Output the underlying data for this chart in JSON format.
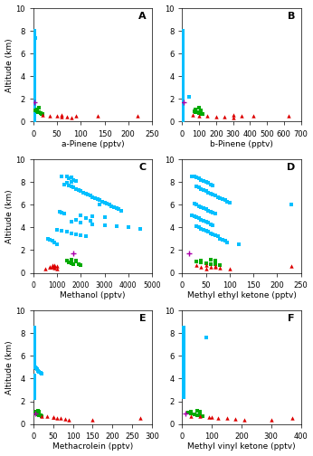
{
  "panels": [
    {
      "label": "A",
      "xlabel": "a-Pinene (pptv)",
      "xlim": [
        0,
        250
      ],
      "xticks": [
        0,
        50,
        100,
        150,
        200,
        250
      ],
      "cyan_x": [
        2,
        3,
        2,
        4,
        3,
        2,
        2,
        2,
        2,
        2,
        3,
        2,
        2,
        2,
        2,
        2,
        2,
        2,
        2,
        2,
        2,
        2,
        2,
        2,
        2,
        2,
        2,
        2,
        2,
        2,
        2,
        2,
        2,
        2,
        2,
        2,
        2,
        2,
        2,
        2,
        2,
        2,
        2,
        2,
        2,
        2,
        2,
        2,
        2,
        2,
        2,
        2,
        2,
        2,
        2,
        2,
        2,
        2,
        2,
        2
      ],
      "cyan_y": [
        8.0,
        7.8,
        7.6,
        7.4,
        7.2,
        7.0,
        6.8,
        6.6,
        6.4,
        6.2,
        6.0,
        5.8,
        5.6,
        5.4,
        5.2,
        5.0,
        4.8,
        4.6,
        4.4,
        4.2,
        4.0,
        3.8,
        3.6,
        3.4,
        3.2,
        3.0,
        2.8,
        2.6,
        2.4,
        2.2,
        2.0,
        1.8,
        1.6,
        1.4,
        1.2,
        1.1,
        1.0,
        0.9,
        0.8,
        0.7,
        0.6,
        0.5,
        0.4,
        0.3,
        0.2,
        0.1,
        2.1,
        1.9,
        1.7,
        1.5,
        1.3,
        2.3,
        2.5,
        2.7,
        2.9,
        3.1,
        3.3,
        3.5,
        3.7,
        4.1
      ],
      "green_x": [
        5,
        8,
        10,
        12,
        15,
        18,
        20,
        8,
        12
      ],
      "green_y": [
        1.0,
        0.9,
        0.85,
        0.8,
        0.75,
        0.7,
        0.65,
        1.1,
        1.2
      ],
      "red_x": [
        20,
        35,
        50,
        60,
        70,
        80,
        90,
        60,
        135,
        220
      ],
      "red_y": [
        0.6,
        0.55,
        0.5,
        0.45,
        0.4,
        0.35,
        0.5,
        0.6,
        0.55,
        0.5
      ],
      "purple_x": [
        1.8
      ],
      "purple_y": [
        1.75
      ]
    },
    {
      "label": "B",
      "xlabel": "b-Pinene (pptv)",
      "xlim": [
        0,
        700
      ],
      "xticks": [
        0,
        100,
        200,
        300,
        400,
        500,
        600,
        700
      ],
      "cyan_x": [
        5,
        5,
        5,
        5,
        5,
        5,
        5,
        5,
        5,
        5,
        5,
        5,
        5,
        5,
        5,
        5,
        5,
        5,
        5,
        5,
        5,
        5,
        5,
        5,
        5,
        5,
        5,
        5,
        5,
        5,
        5,
        5,
        5,
        5,
        5,
        5,
        5,
        5,
        5,
        5,
        5,
        5,
        5,
        5,
        5,
        5,
        5,
        5,
        5,
        5,
        5,
        5,
        5,
        5,
        5,
        5,
        5,
        5,
        5,
        5,
        40
      ],
      "cyan_y": [
        8.0,
        7.8,
        7.6,
        7.4,
        7.2,
        7.0,
        6.8,
        6.6,
        6.4,
        6.2,
        6.0,
        5.8,
        5.6,
        5.4,
        5.2,
        5.0,
        4.8,
        4.6,
        4.4,
        4.2,
        4.0,
        3.8,
        3.6,
        3.4,
        3.2,
        3.0,
        2.8,
        2.6,
        2.4,
        2.2,
        2.0,
        1.8,
        1.6,
        1.4,
        1.2,
        1.1,
        1.0,
        0.9,
        0.8,
        0.7,
        0.6,
        0.5,
        0.4,
        0.3,
        0.2,
        0.1,
        2.1,
        1.9,
        1.7,
        1.5,
        1.3,
        2.3,
        2.5,
        2.7,
        2.9,
        3.1,
        3.3,
        3.5,
        3.7,
        4.1,
        2.2
      ],
      "green_x": [
        70,
        80,
        90,
        100,
        110,
        120,
        80,
        100,
        110
      ],
      "green_y": [
        0.95,
        0.85,
        0.8,
        0.75,
        0.7,
        0.65,
        1.1,
        1.2,
        1.0
      ],
      "red_x": [
        60,
        100,
        150,
        200,
        250,
        300,
        350,
        300,
        420,
        630
      ],
      "red_y": [
        0.6,
        0.55,
        0.5,
        0.45,
        0.4,
        0.35,
        0.5,
        0.6,
        0.55,
        0.5
      ],
      "purple_x": [
        8
      ],
      "purple_y": [
        1.75
      ]
    },
    {
      "label": "C",
      "xlabel": "Methanol (pptv)",
      "xlim": [
        0,
        5000
      ],
      "xticks": [
        0,
        1000,
        2000,
        3000,
        4000,
        5000
      ],
      "cyan_x": [
        1200,
        1400,
        1600,
        1500,
        1700,
        1800,
        1600,
        1400,
        1300,
        1500,
        1600,
        1700,
        1800,
        1900,
        2000,
        2100,
        2200,
        2300,
        2400,
        2500,
        2600,
        2700,
        2800,
        2900,
        3000,
        3100,
        3200,
        3300,
        3400,
        3500,
        3600,
        3700,
        1100,
        1200,
        1300,
        2000,
        2500,
        3000,
        2200,
        1800,
        2400,
        1600,
        2000,
        2500,
        3000,
        3500,
        4000,
        4500,
        1000,
        1200,
        1400,
        1600,
        1800,
        2000,
        2200,
        600,
        700,
        800,
        900,
        1000,
        2800
      ],
      "cyan_y": [
        8.5,
        8.5,
        8.4,
        8.3,
        8.2,
        8.1,
        8.0,
        7.9,
        7.8,
        7.7,
        7.6,
        7.5,
        7.4,
        7.3,
        7.2,
        7.1,
        7.0,
        6.9,
        6.8,
        6.7,
        6.6,
        6.5,
        6.4,
        6.3,
        6.2,
        6.1,
        6.0,
        5.9,
        5.8,
        5.7,
        5.6,
        5.5,
        5.4,
        5.3,
        5.2,
        5.1,
        5.0,
        4.9,
        4.8,
        4.7,
        4.6,
        4.5,
        4.4,
        4.3,
        4.2,
        4.1,
        4.0,
        3.9,
        3.8,
        3.7,
        3.6,
        3.5,
        3.4,
        3.3,
        3.2,
        3.0,
        2.9,
        2.8,
        2.7,
        2.5,
        6.0
      ],
      "green_x": [
        1800,
        1500,
        1600,
        1700,
        1900,
        2000,
        1400,
        1600,
        1800
      ],
      "green_y": [
        1.0,
        0.95,
        0.85,
        0.8,
        0.75,
        0.65,
        1.1,
        1.2,
        1.05
      ],
      "red_x": [
        800,
        900,
        1000,
        700,
        800,
        900,
        1000,
        500,
        700,
        900
      ],
      "red_y": [
        0.7,
        0.65,
        0.6,
        0.55,
        0.5,
        0.45,
        0.4,
        0.35,
        0.5,
        0.6
      ],
      "purple_x": [
        1700
      ],
      "purple_y": [
        1.75
      ]
    },
    {
      "label": "D",
      "xlabel": "Methyl ethyl ketone (pptv)",
      "xlim": [
        0,
        250
      ],
      "xticks": [
        0,
        50,
        100,
        150,
        200,
        250
      ],
      "cyan_x": [
        20,
        25,
        30,
        35,
        40,
        45,
        50,
        55,
        60,
        65,
        30,
        35,
        40,
        45,
        50,
        55,
        60,
        65,
        70,
        75,
        80,
        85,
        90,
        95,
        100,
        25,
        30,
        35,
        40,
        45,
        50,
        55,
        60,
        65,
        70,
        20,
        25,
        30,
        35,
        40,
        45,
        50,
        55,
        60,
        65,
        30,
        35,
        40,
        45,
        50,
        55,
        60,
        65,
        70,
        75,
        80,
        85,
        90,
        95,
        120,
        230
      ],
      "cyan_y": [
        8.5,
        8.5,
        8.4,
        8.3,
        8.2,
        8.1,
        8.0,
        7.9,
        7.8,
        7.7,
        7.6,
        7.5,
        7.4,
        7.3,
        7.2,
        7.1,
        7.0,
        6.9,
        6.8,
        6.7,
        6.6,
        6.5,
        6.4,
        6.3,
        6.2,
        6.1,
        6.0,
        5.9,
        5.8,
        5.7,
        5.6,
        5.5,
        5.4,
        5.3,
        5.2,
        5.1,
        5.0,
        4.9,
        4.8,
        4.7,
        4.6,
        4.5,
        4.4,
        4.3,
        4.2,
        4.1,
        4.0,
        3.9,
        3.8,
        3.7,
        3.6,
        3.5,
        3.4,
        3.3,
        3.2,
        3.0,
        2.9,
        2.8,
        2.7,
        2.5,
        6.0
      ],
      "green_x": [
        30,
        40,
        50,
        60,
        70,
        80,
        40,
        60,
        70
      ],
      "green_y": [
        1.0,
        0.95,
        0.85,
        0.8,
        0.75,
        0.65,
        1.1,
        1.2,
        1.05
      ],
      "red_x": [
        30,
        50,
        70,
        40,
        60,
        80,
        100,
        50,
        70,
        230
      ],
      "red_y": [
        0.7,
        0.65,
        0.6,
        0.55,
        0.5,
        0.45,
        0.4,
        0.35,
        0.5,
        0.6
      ],
      "purple_x": [
        15
      ],
      "purple_y": [
        1.75
      ]
    },
    {
      "label": "E",
      "xlabel": "Methacrolein (pptv)",
      "xlim": [
        0,
        300
      ],
      "xticks": [
        0,
        50,
        100,
        150,
        200,
        250,
        300
      ],
      "cyan_x": [
        3,
        3,
        3,
        3,
        3,
        3,
        3,
        3,
        3,
        3,
        3,
        3,
        3,
        3,
        3,
        3,
        3,
        3,
        3,
        3,
        3,
        3,
        3,
        3,
        3,
        3,
        3,
        3,
        3,
        3,
        3,
        3,
        3,
        3,
        3,
        5,
        8,
        10,
        12,
        15,
        18,
        20,
        3,
        3,
        3,
        3,
        3,
        3,
        3,
        3,
        3,
        3,
        3,
        3,
        3,
        3,
        3,
        3,
        3,
        3,
        3
      ],
      "cyan_y": [
        8.5,
        8.4,
        8.3,
        8.2,
        8.1,
        8.0,
        7.9,
        7.8,
        7.7,
        7.6,
        7.5,
        7.4,
        7.3,
        7.2,
        7.1,
        7.0,
        6.9,
        6.8,
        6.7,
        6.6,
        6.5,
        6.4,
        6.3,
        6.2,
        6.1,
        6.0,
        5.9,
        5.8,
        5.7,
        5.6,
        5.5,
        5.4,
        5.3,
        5.2,
        5.1,
        5.0,
        4.9,
        4.8,
        4.7,
        4.6,
        4.5,
        4.4,
        4.3,
        4.2,
        4.1,
        4.0,
        3.9,
        3.8,
        3.7,
        3.6,
        3.5,
        3.4,
        3.3,
        3.2,
        3.0,
        2.9,
        2.8,
        2.7,
        2.5,
        2.4,
        2.3
      ],
      "green_x": [
        5,
        8,
        12,
        15,
        18,
        20,
        8,
        12,
        15
      ],
      "green_y": [
        1.0,
        0.95,
        0.85,
        0.8,
        0.75,
        0.65,
        1.1,
        1.2,
        1.05
      ],
      "red_x": [
        20,
        35,
        50,
        60,
        70,
        80,
        90,
        150,
        270,
        50
      ],
      "red_y": [
        0.7,
        0.65,
        0.6,
        0.55,
        0.5,
        0.45,
        0.4,
        0.35,
        0.5,
        0.6
      ],
      "purple_x": [
        5
      ],
      "purple_y": [
        0.9
      ]
    },
    {
      "label": "F",
      "xlabel": "Methyl vinyl ketone (pptv)",
      "xlim": [
        0,
        400
      ],
      "xticks": [
        0,
        100,
        200,
        300,
        400
      ],
      "cyan_x": [
        5,
        5,
        5,
        5,
        5,
        5,
        5,
        5,
        5,
        5,
        5,
        5,
        5,
        5,
        5,
        5,
        5,
        5,
        5,
        5,
        5,
        5,
        5,
        5,
        5,
        5,
        5,
        5,
        5,
        5,
        5,
        5,
        5,
        5,
        5,
        5,
        5,
        5,
        5,
        5,
        5,
        5,
        5,
        5,
        5,
        5,
        5,
        5,
        5,
        5,
        5,
        5,
        5,
        5,
        5,
        5,
        5,
        5,
        5,
        5,
        80
      ],
      "cyan_y": [
        8.5,
        8.4,
        8.3,
        8.2,
        8.1,
        8.0,
        7.9,
        7.8,
        7.7,
        7.6,
        7.5,
        7.4,
        7.3,
        7.2,
        7.1,
        7.0,
        6.9,
        6.8,
        6.7,
        6.6,
        6.5,
        6.4,
        6.3,
        6.2,
        6.1,
        6.0,
        5.9,
        5.8,
        5.7,
        5.6,
        5.5,
        5.4,
        5.3,
        5.2,
        5.1,
        5.0,
        4.9,
        4.8,
        4.7,
        4.6,
        4.5,
        4.4,
        4.3,
        4.2,
        4.1,
        4.0,
        3.9,
        3.8,
        3.7,
        3.6,
        3.5,
        3.4,
        3.3,
        3.2,
        3.0,
        2.9,
        2.8,
        2.7,
        2.5,
        2.4,
        7.6
      ],
      "green_x": [
        20,
        30,
        40,
        50,
        60,
        70,
        30,
        50,
        60
      ],
      "green_y": [
        1.0,
        0.95,
        0.85,
        0.8,
        0.75,
        0.65,
        1.1,
        1.2,
        1.05
      ],
      "red_x": [
        30,
        60,
        90,
        120,
        150,
        180,
        210,
        300,
        370,
        100
      ],
      "red_y": [
        0.7,
        0.65,
        0.6,
        0.55,
        0.5,
        0.45,
        0.4,
        0.35,
        0.5,
        0.6
      ],
      "purple_x": [
        10
      ],
      "purple_y": [
        0.9
      ]
    }
  ],
  "ylim": [
    0,
    10
  ],
  "yticks": [
    0,
    2,
    4,
    6,
    8,
    10
  ],
  "ylabel": "Altitude (km)",
  "cyan_color": "#00BFFF",
  "green_color": "#00AA00",
  "red_color": "#DD0000",
  "purple_color": "#AA00AA",
  "marker_size": 4,
  "figure_width": 3.46,
  "figure_height": 5.04,
  "dpi": 100
}
